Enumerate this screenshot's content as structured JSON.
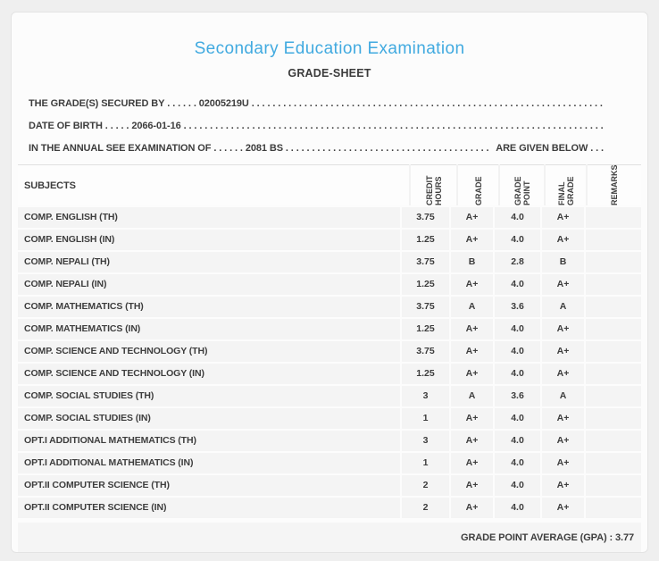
{
  "colors": {
    "accent_blue": "#41aae0",
    "text_dark": "#3d3d3d",
    "row_background": "#f4f4f4",
    "page_background": "#efefef",
    "card_background": "#fcfcfc"
  },
  "header": {
    "title": "Secondary Education Examination",
    "subtitle": "GRADE-SHEET"
  },
  "info_lines": [
    {
      "label": "THE GRADE(S) SECURED BY",
      "dots_before": " . . . . . . ",
      "value": "02005219U",
      "dots_fill": " . . . . . . . . . . . . . . . . . . . . . . . . . . . . . . . . . . . . . . . . . . . . . . . . . . . . . . . . . . . . . . . . . . . . . . . . . . . . . . . .",
      "suffix": "",
      "dots_end": ""
    },
    {
      "label": "DATE OF BIRTH",
      "dots_before": " . . . . . ",
      "value": "2066-01-16",
      "dots_fill": " . . . . . . . . . . . . . . . . . . . . . . . . . . . . . . . . . . . . . . . . . . . . . . . . . . . . . . . . . . . . . . . . . . . . . . . . . . . . . . . .",
      "suffix": "",
      "dots_end": ""
    },
    {
      "label": "IN THE ANNUAL SEE EXAMINATION OF",
      "dots_before": " . . . . . . ",
      "value": "2081 BS",
      "dots_fill": " . . . . . . . . . . . . . . . . . . . . . . . . . . . . . . . . . . . . . . . . . . . . . . . . . . . . . . . . . . . . . . . . . . . . . . . . . . . . . . . .",
      "suffix": "ARE GIVEN BELOW",
      "dots_end": " . . ."
    }
  ],
  "table": {
    "columns": [
      "SUBJECTS",
      "CREDIT HOURS",
      "GRADE",
      "GRADE POINT",
      "FINAL GRADE",
      "REMARKS"
    ],
    "rows": [
      {
        "subject": "COMP. ENGLISH (TH)",
        "credit": "3.75",
        "grade": "A+",
        "point": "4.0",
        "final": "A+",
        "remarks": ""
      },
      {
        "subject": "COMP. ENGLISH (IN)",
        "credit": "1.25",
        "grade": "A+",
        "point": "4.0",
        "final": "A+",
        "remarks": ""
      },
      {
        "subject": "COMP. NEPALI (TH)",
        "credit": "3.75",
        "grade": "B",
        "point": "2.8",
        "final": "B",
        "remarks": ""
      },
      {
        "subject": "COMP. NEPALI (IN)",
        "credit": "1.25",
        "grade": "A+",
        "point": "4.0",
        "final": "A+",
        "remarks": ""
      },
      {
        "subject": "COMP. MATHEMATICS (TH)",
        "credit": "3.75",
        "grade": "A",
        "point": "3.6",
        "final": "A",
        "remarks": ""
      },
      {
        "subject": "COMP. MATHEMATICS (IN)",
        "credit": "1.25",
        "grade": "A+",
        "point": "4.0",
        "final": "A+",
        "remarks": ""
      },
      {
        "subject": "COMP. SCIENCE AND TECHNOLOGY (TH)",
        "credit": "3.75",
        "grade": "A+",
        "point": "4.0",
        "final": "A+",
        "remarks": ""
      },
      {
        "subject": "COMP. SCIENCE AND TECHNOLOGY (IN)",
        "credit": "1.25",
        "grade": "A+",
        "point": "4.0",
        "final": "A+",
        "remarks": ""
      },
      {
        "subject": "COMP. SOCIAL STUDIES (TH)",
        "credit": "3",
        "grade": "A",
        "point": "3.6",
        "final": "A",
        "remarks": ""
      },
      {
        "subject": "COMP. SOCIAL STUDIES (IN)",
        "credit": "1",
        "grade": "A+",
        "point": "4.0",
        "final": "A+",
        "remarks": ""
      },
      {
        "subject": "OPT.I ADDITIONAL MATHEMATICS (TH)",
        "credit": "3",
        "grade": "A+",
        "point": "4.0",
        "final": "A+",
        "remarks": ""
      },
      {
        "subject": "OPT.I ADDITIONAL MATHEMATICS (IN)",
        "credit": "1",
        "grade": "A+",
        "point": "4.0",
        "final": "A+",
        "remarks": ""
      },
      {
        "subject": "OPT.II COMPUTER SCIENCE (TH)",
        "credit": "2",
        "grade": "A+",
        "point": "4.0",
        "final": "A+",
        "remarks": ""
      },
      {
        "subject": "OPT.II COMPUTER SCIENCE (IN)",
        "credit": "2",
        "grade": "A+",
        "point": "4.0",
        "final": "A+",
        "remarks": ""
      }
    ]
  },
  "footer": {
    "gpa_text": "GRADE POINT AVERAGE (GPA) : 3.77"
  }
}
